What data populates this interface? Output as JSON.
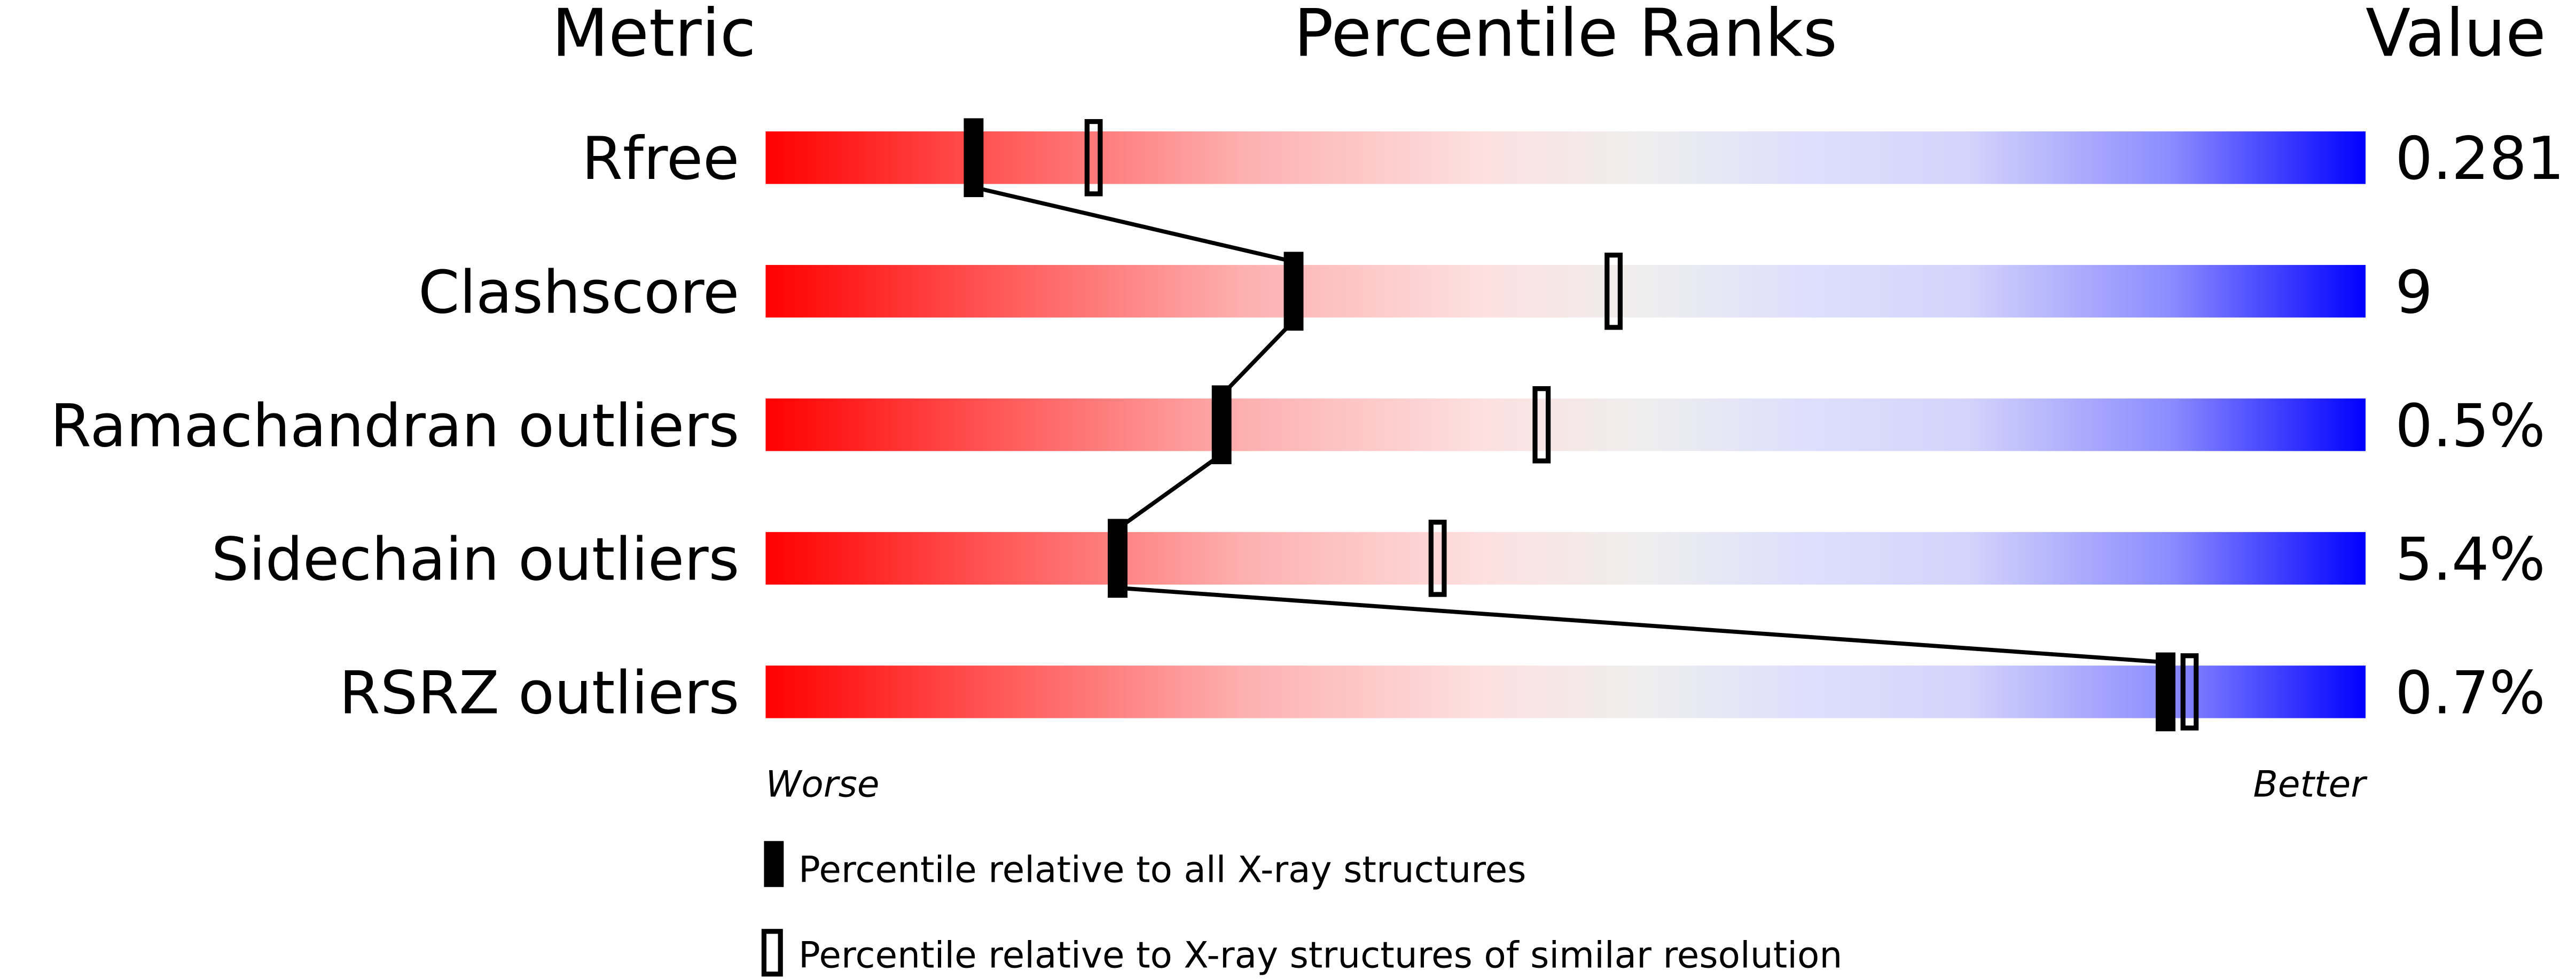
{
  "chart_data": {
    "type": "percentile-slider",
    "headers": {
      "metric": "Metric",
      "ranks": "Percentile Ranks",
      "value": "Value"
    },
    "xlim": [
      0,
      100
    ],
    "axis_labels": {
      "left": "Worse",
      "right": "Better"
    },
    "colors": {
      "worse": "#ff0000",
      "neutral": "#eeeeee",
      "better": "#0000ff",
      "marker": "#000000"
    },
    "rows": [
      {
        "metric": "Rfree",
        "value": "0.281",
        "percentile_all": 13,
        "percentile_similar": 20.5
      },
      {
        "metric": "Clashscore",
        "value": "9",
        "percentile_all": 33,
        "percentile_similar": 53
      },
      {
        "metric": "Ramachandran outliers",
        "value": "0.5%",
        "percentile_all": 28.5,
        "percentile_similar": 48.5
      },
      {
        "metric": "Sidechain outliers",
        "value": "5.4%",
        "percentile_all": 22,
        "percentile_similar": 42
      },
      {
        "metric": "RSRZ outliers",
        "value": "0.7%",
        "percentile_all": 87.5,
        "percentile_similar": 89
      }
    ],
    "legend": [
      {
        "marker": "filled",
        "label": "Percentile relative to all X-ray structures"
      },
      {
        "marker": "open",
        "label": "Percentile relative to X-ray structures of similar resolution"
      }
    ]
  }
}
